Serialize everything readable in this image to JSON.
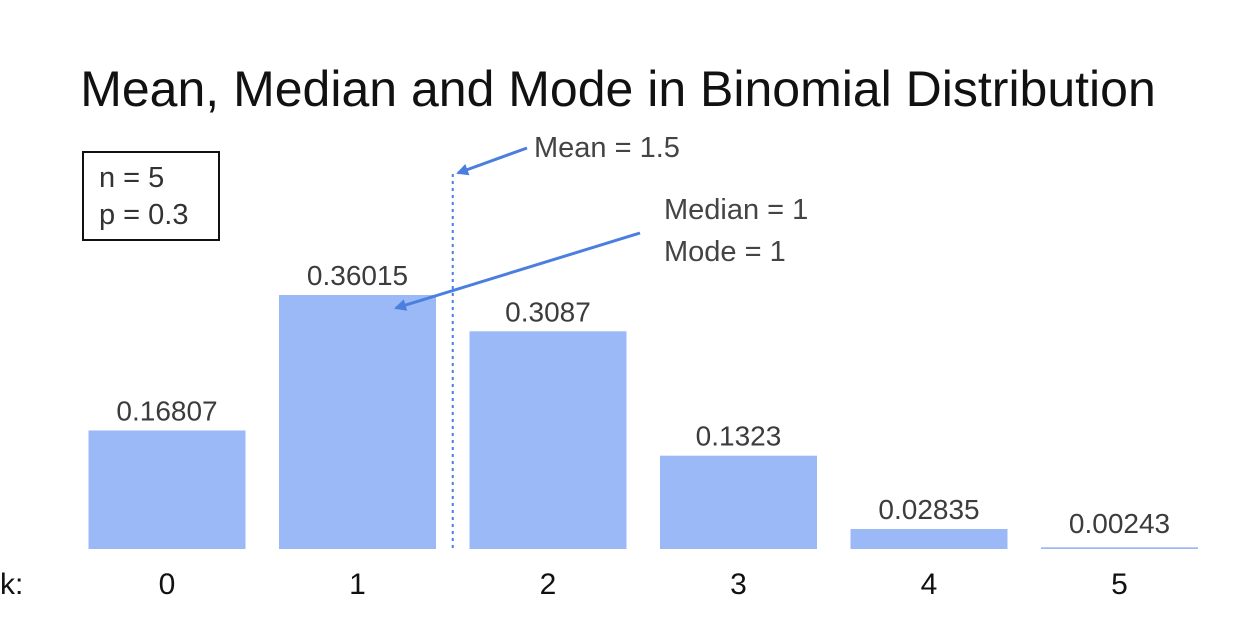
{
  "chart_data": {
    "type": "bar",
    "title": "Mean, Median and Mode in Binomial Distribution",
    "xlabel": "k:",
    "ylabel": "",
    "categories": [
      "0",
      "1",
      "2",
      "3",
      "4",
      "5"
    ],
    "values": [
      0.16807,
      0.36015,
      0.3087,
      0.1323,
      0.02835,
      0.00243
    ],
    "data_labels": [
      "0.16807",
      "0.36015",
      "0.3087",
      "0.1323",
      "0.02835",
      "0.00243"
    ],
    "ylim": [
      0,
      0.36015
    ],
    "grid": false,
    "bar_color": "#9ab9f6",
    "annotation_color": "#4a7fe0",
    "params": {
      "n_label": "n = 5",
      "p_label": "p = 0.3"
    },
    "mean": {
      "value": 1.5,
      "label": "Mean = 1.5"
    },
    "median": {
      "value": 1,
      "label": "Median = 1"
    },
    "mode": {
      "value": 1,
      "label": "Mode = 1"
    }
  }
}
